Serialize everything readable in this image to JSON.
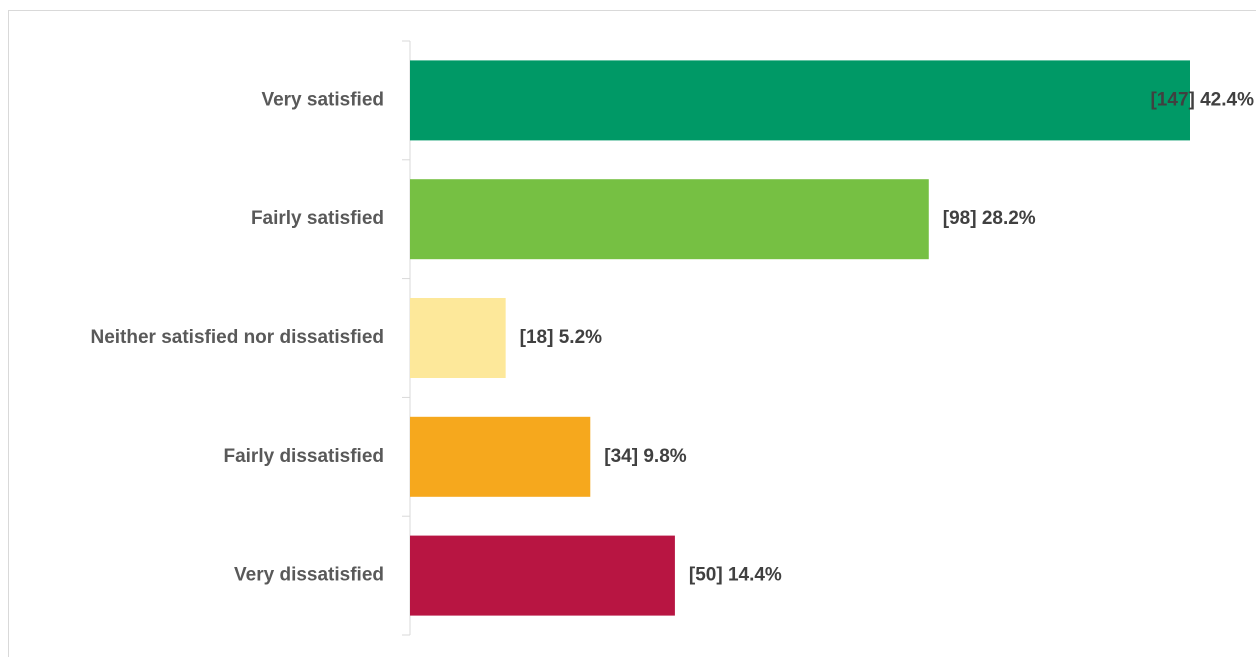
{
  "chart_data": {
    "type": "bar",
    "orientation": "horizontal",
    "categories": [
      "Very satisfied",
      "Fairly satisfied",
      "Neither satisfied nor dissatisfied",
      "Fairly dissatisfied",
      "Very dissatisfied"
    ],
    "values": [
      42.4,
      28.2,
      5.2,
      9.8,
      14.4
    ],
    "value_labels": [
      "[147] 42.4%",
      "[98] 28.2%",
      "[18] 5.2%",
      "[34] 9.8%",
      "[50] 14.4%"
    ],
    "colors": [
      "#009966",
      "#76c043",
      "#fde89a",
      "#f6a81d",
      "#b81542"
    ]
  }
}
